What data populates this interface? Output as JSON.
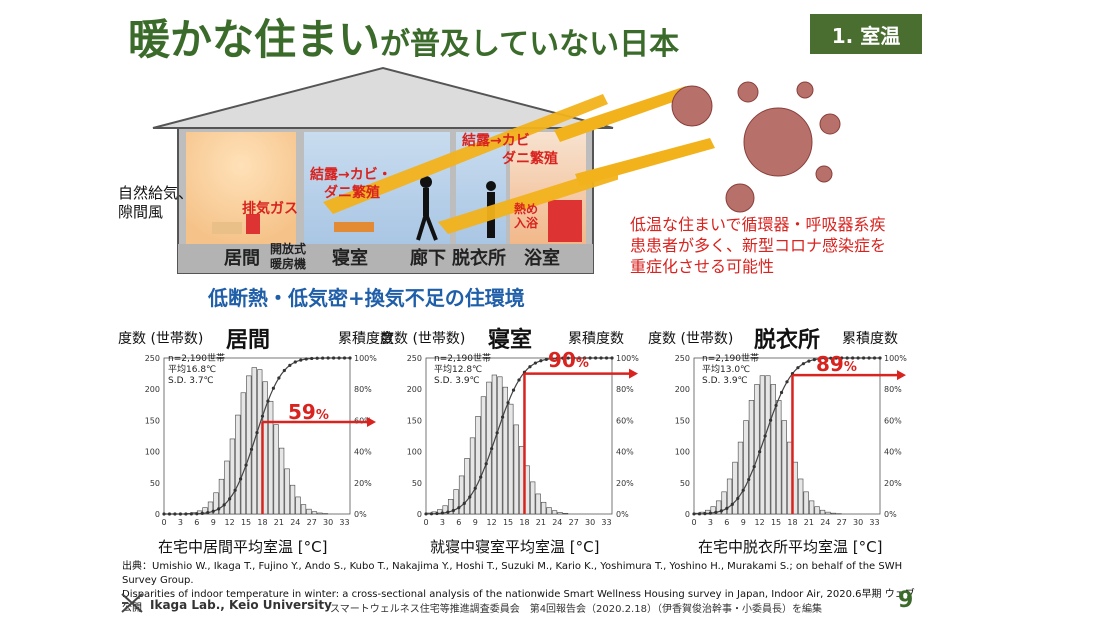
{
  "title": {
    "main": "暖かな住まい",
    "rest": "が普及していない日本"
  },
  "section_tag": "1. 室温",
  "house": {
    "side_label_line1": "自然給気、",
    "side_label_line2": "隙間風",
    "exhaust_label": "排気ガス",
    "condensation_label1_line1": "結露→カビ・",
    "condensation_label1_line2": "ダニ繁殖",
    "condensation_label2_line1": "結露→カビ",
    "condensation_label2_line2": "ダニ繁殖",
    "heat_bath_line1": "熱め",
    "heat_bath_line2": "入浴",
    "rooms": [
      "居間",
      "寝室",
      "廊下",
      "脱衣所",
      "浴室"
    ],
    "heater_line1": "開放式",
    "heater_line2": "暖房機"
  },
  "covid_note": "低温な住まいで循環器・呼吸器系疾患患者が多く、新型コロナ感染症を重症化させる可能性",
  "environment_caption": "低断熱・低気密+換気不足の住環境",
  "axis_left_label": "度数 (世帯数)",
  "axis_right_label": "累積度数",
  "histograms": [
    {
      "room": "居間",
      "n": "n=2,190世帯",
      "mean": "平均16.8℃",
      "sd": "S.D.  3.7℃",
      "percent_value": "59",
      "percent_sign": "%",
      "x_caption": "在宅中居間平均室温 [°C]"
    },
    {
      "room": "寝室",
      "n": "n=2,190世帯",
      "mean": "平均12.8℃",
      "sd": "S.D.  3.9℃",
      "percent_value": "90",
      "percent_sign": "%",
      "x_caption": "就寝中寝室平均室温 [°C]"
    },
    {
      "room": "脱衣所",
      "n": "n=2,190世帯",
      "mean": "平均13.0℃",
      "sd": "S.D.  3.9℃",
      "percent_value": "89",
      "percent_sign": "%",
      "x_caption": "在宅中脱衣所平均室温 [°C]"
    }
  ],
  "chart_data": [
    {
      "type": "bar",
      "title": "居間",
      "mean": 16.8,
      "sd": 3.7,
      "threshold": 18,
      "cumulative_at_threshold": 59,
      "x_ticks": [
        0,
        3,
        6,
        9,
        12,
        15,
        18,
        21,
        24,
        27,
        30,
        33
      ],
      "y_left_ticks": [
        0,
        50,
        100,
        150,
        200,
        250
      ],
      "y_right_ticks": [
        "0%",
        "20%",
        "40%",
        "60%",
        "80%",
        "100%"
      ],
      "ylim": [
        0,
        250
      ],
      "xlim": [
        0,
        34
      ]
    },
    {
      "type": "bar",
      "title": "寝室",
      "mean": 12.8,
      "sd": 3.9,
      "threshold": 18,
      "cumulative_at_threshold": 90,
      "x_ticks": [
        0,
        3,
        6,
        9,
        12,
        15,
        18,
        21,
        24,
        27,
        30,
        33
      ],
      "y_left_ticks": [
        0,
        50,
        100,
        150,
        200,
        250
      ],
      "y_right_ticks": [
        "0%",
        "20%",
        "40%",
        "60%",
        "80%",
        "100%"
      ],
      "ylim": [
        0,
        250
      ],
      "xlim": [
        0,
        34
      ]
    },
    {
      "type": "bar",
      "title": "脱衣所",
      "mean": 13.0,
      "sd": 3.9,
      "threshold": 18,
      "cumulative_at_threshold": 89,
      "x_ticks": [
        0,
        3,
        6,
        9,
        12,
        15,
        18,
        21,
        24,
        27,
        30,
        33
      ],
      "y_left_ticks": [
        0,
        50,
        100,
        150,
        200,
        250
      ],
      "y_right_ticks": [
        "0%",
        "20%",
        "40%",
        "60%",
        "80%",
        "100%"
      ],
      "ylim": [
        0,
        250
      ],
      "xlim": [
        0,
        34
      ]
    }
  ],
  "source_line1": "出典：Umishio W., Ikaga T., Fujino Y., Ando S., Kubo T., Nakajima Y., Hoshi T., Suzuki M., Kario K., Yoshimura T., Yoshino H., Murakami S.; on behalf of the SWH Survey Group.",
  "source_line2": "Disparities of indoor temperature in winter: a cross-sectional analysis of the nationwide Smart Wellness Housing survey in Japan, Indoor Air, 2020.6早期 ウェブ公開",
  "footer_lab": "Ikaga Lab., Keio University",
  "footer_report": "スマートウェルネス住宅等推進調査委員会　第4回報告会（2020.2.18）（伊香賀俊治幹事・小委員長）を編集",
  "page_number": "9",
  "colors": {
    "title_green": "#3b6b2a",
    "accent_red": "#d8231f",
    "caption_blue": "#1f5ea8",
    "arrow_yellow": "#f2b21b"
  }
}
